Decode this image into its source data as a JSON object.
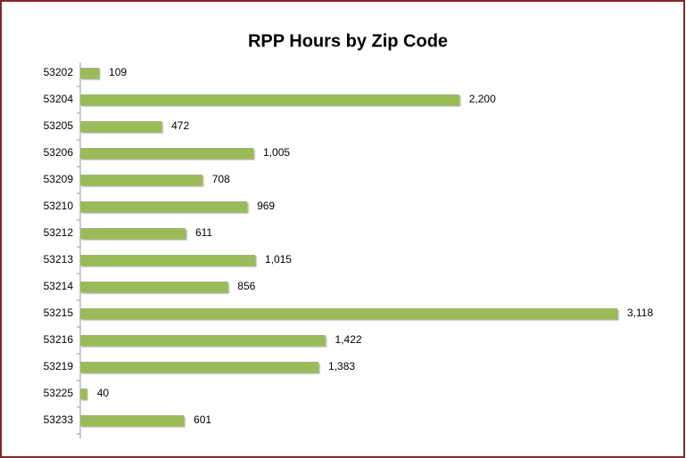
{
  "chart_data": {
    "type": "bar",
    "orientation": "horizontal",
    "title": "RPP Hours by Zip Code",
    "categories": [
      "53202",
      "53204",
      "53205",
      "53206",
      "53209",
      "53210",
      "53212",
      "53213",
      "53214",
      "53215",
      "53216",
      "53219",
      "53225",
      "53233"
    ],
    "values": [
      109,
      2200,
      472,
      1005,
      708,
      969,
      611,
      1015,
      856,
      3118,
      1422,
      1383,
      40,
      601
    ],
    "value_labels": [
      "109",
      "2,200",
      "472",
      "1,005",
      "708",
      "969",
      "611",
      "1,015",
      "856",
      "3,118",
      "1,422",
      "1,383",
      "40",
      "601"
    ],
    "color": "#9bbb59"
  }
}
